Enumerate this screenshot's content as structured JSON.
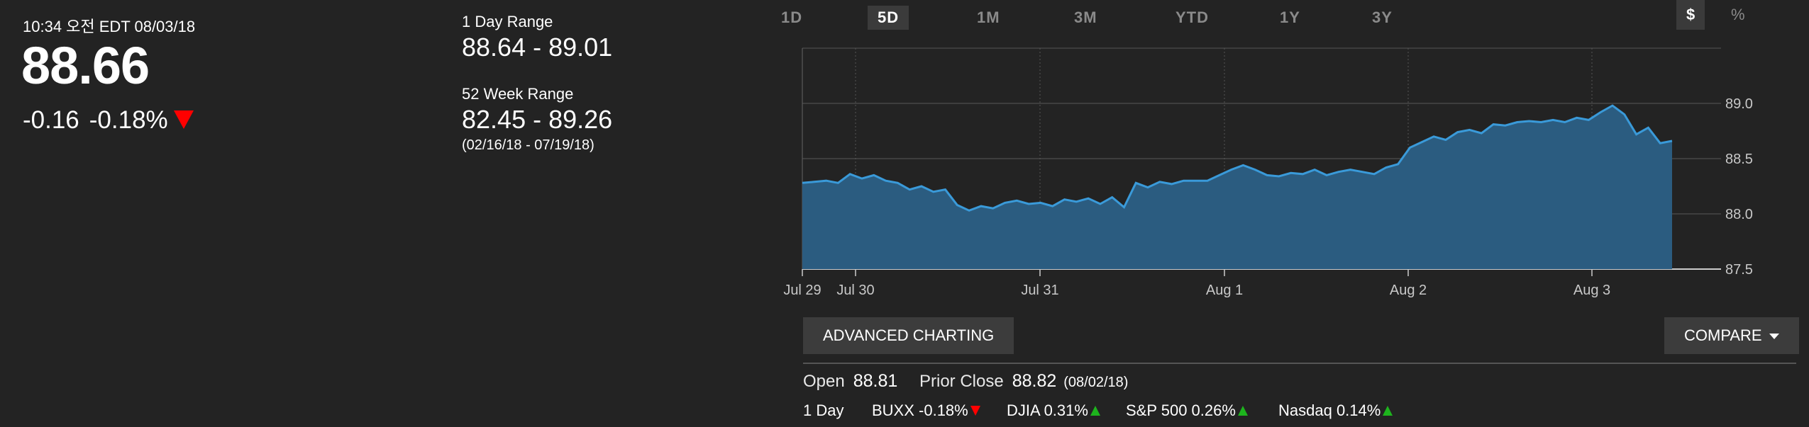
{
  "quote": {
    "timestamp": "10:34 오전 EDT 08/03/18",
    "price": "88.66",
    "change": "-0.16",
    "change_pct": "-0.18%",
    "direction": "down",
    "down_color": "#ff0000"
  },
  "ranges": {
    "day_label": "1 Day Range",
    "day_value": "88.64 - 89.01",
    "week52_label": "52 Week Range",
    "week52_value": "82.45 - 89.26",
    "week52_dates": "(02/16/18 - 07/19/18)"
  },
  "tabs": [
    {
      "label": "1D",
      "active": false
    },
    {
      "label": "5D",
      "active": true
    },
    {
      "label": "1M",
      "active": false
    },
    {
      "label": "3M",
      "active": false
    },
    {
      "label": "YTD",
      "active": false
    },
    {
      "label": "1Y",
      "active": false
    },
    {
      "label": "3Y",
      "active": false
    }
  ],
  "units": {
    "dollar": "$",
    "percent": "%"
  },
  "chart_data": {
    "type": "area",
    "x_ticks": [
      "Jul 29",
      "Jul 30",
      "Jul 31",
      "Aug 1",
      "Aug 2",
      "Aug 3"
    ],
    "y_ticks": [
      "89.0",
      "88.5",
      "88.0",
      "87.5"
    ],
    "ylim": [
      87.5,
      89.5
    ],
    "grid": true,
    "line_color": "#3a9ad9",
    "fill_color": "#2b5c80",
    "y": [
      88.28,
      88.29,
      88.3,
      88.28,
      88.36,
      88.32,
      88.35,
      88.3,
      88.28,
      88.22,
      88.25,
      88.2,
      88.22,
      88.08,
      88.03,
      88.07,
      88.05,
      88.1,
      88.12,
      88.09,
      88.1,
      88.07,
      88.13,
      88.11,
      88.14,
      88.09,
      88.15,
      88.06,
      88.28,
      88.24,
      88.29,
      88.27,
      88.3,
      88.3,
      88.3,
      88.35,
      88.4,
      88.44,
      88.4,
      88.35,
      88.34,
      88.37,
      88.36,
      88.4,
      88.35,
      88.38,
      88.4,
      88.38,
      88.36,
      88.42,
      88.45,
      88.6,
      88.65,
      88.7,
      88.67,
      88.74,
      88.76,
      88.73,
      88.81,
      88.8,
      88.83,
      88.84,
      88.83,
      88.85,
      88.83,
      88.87,
      88.85,
      88.92,
      88.98,
      88.9,
      88.72,
      88.78,
      88.64,
      88.66
    ]
  },
  "buttons": {
    "advanced": "ADVANCED CHARTING",
    "compare": "COMPARE"
  },
  "stats": {
    "open_label": "Open",
    "open_value": "88.81",
    "prior_label": "Prior Close",
    "prior_value": "88.82",
    "prior_date": "(08/02/18)"
  },
  "indices": {
    "label": "1 Day",
    "items": [
      {
        "text": "BUXX -0.18%",
        "dir": "down"
      },
      {
        "text": "DJIA 0.31%",
        "dir": "up"
      },
      {
        "text": "S&P 500 0.26%",
        "dir": "up"
      },
      {
        "text": "Nasdaq 0.14%",
        "dir": "up"
      }
    ],
    "up_color": "#1db41d",
    "down_color": "#ff0000"
  }
}
